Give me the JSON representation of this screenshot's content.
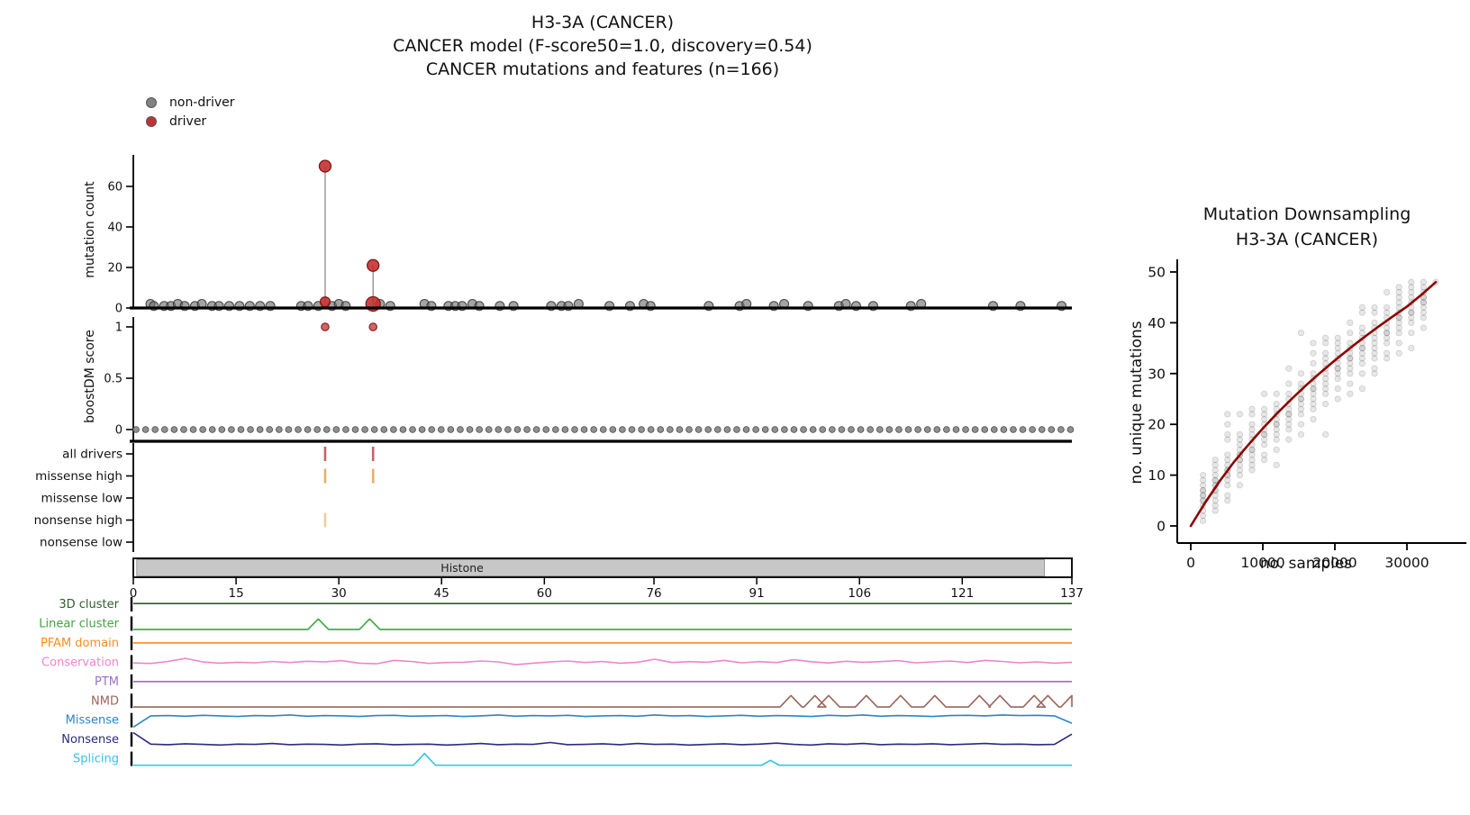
{
  "figure": {
    "title_lines": [
      "H3-3A (CANCER)",
      "CANCER model (F-score50=1.0, discovery=0.54)",
      "CANCER mutations and features (n=166)"
    ],
    "legend": [
      {
        "label": "non-driver",
        "color": "#828282"
      },
      {
        "label": "driver",
        "color": "#c23232"
      }
    ]
  },
  "chart_data": [
    {
      "id": "mutation-count",
      "type": "lollipop",
      "ylabel": "mutation count",
      "yticks": [
        0,
        20,
        40,
        60
      ],
      "ylim": [
        0,
        75
      ],
      "xlim": [
        0,
        137
      ],
      "non_driver_color": "#6e6e6e",
      "driver_color": "#c22424",
      "non_driver_points": [
        [
          2.5,
          2
        ],
        [
          3,
          1
        ],
        [
          4.5,
          1
        ],
        [
          5.5,
          1
        ],
        [
          6.5,
          2
        ],
        [
          7.5,
          1
        ],
        [
          9,
          1
        ],
        [
          10,
          2
        ],
        [
          11.5,
          1
        ],
        [
          12.5,
          1
        ],
        [
          14,
          1
        ],
        [
          15.5,
          1
        ],
        [
          17,
          1
        ],
        [
          18.5,
          1
        ],
        [
          20,
          1
        ],
        [
          24.5,
          1
        ],
        [
          25.5,
          1
        ],
        [
          27,
          1
        ],
        [
          29,
          1
        ],
        [
          30,
          2
        ],
        [
          31,
          1
        ],
        [
          36,
          2
        ],
        [
          37.5,
          1
        ],
        [
          42.5,
          2
        ],
        [
          43.5,
          1
        ],
        [
          46,
          1
        ],
        [
          47,
          1
        ],
        [
          48,
          1
        ],
        [
          49.5,
          2
        ],
        [
          50.5,
          1
        ],
        [
          53.5,
          1
        ],
        [
          55.5,
          1
        ],
        [
          61,
          1
        ],
        [
          62.5,
          1
        ],
        [
          63.5,
          1
        ],
        [
          65,
          2
        ],
        [
          69.5,
          1
        ],
        [
          72.5,
          1
        ],
        [
          74.5,
          2
        ],
        [
          75.5,
          1
        ],
        [
          84,
          1
        ],
        [
          88.5,
          1
        ],
        [
          89.5,
          2
        ],
        [
          93.5,
          1
        ],
        [
          95,
          2
        ],
        [
          98.5,
          1
        ],
        [
          103,
          1
        ],
        [
          104,
          2
        ],
        [
          105.5,
          1
        ],
        [
          108,
          1
        ],
        [
          113.5,
          1
        ],
        [
          115,
          2
        ],
        [
          125.5,
          1
        ],
        [
          129.5,
          1
        ],
        [
          135.5,
          1
        ]
      ],
      "driver_points": [
        [
          28,
          70
        ],
        [
          35,
          21
        ]
      ],
      "driver_base_points": [
        [
          28,
          3
        ],
        [
          35,
          2
        ]
      ]
    },
    {
      "id": "boostdm-score",
      "type": "scatter",
      "ylabel": "boostDM score",
      "yticks": [
        0,
        0.5,
        1
      ],
      "ylim": [
        0,
        1.1
      ],
      "xlim": [
        0,
        137
      ],
      "zero_row": {
        "n": 99,
        "start": 0.4,
        "end": 136.8,
        "y": 0,
        "color": "#848484"
      },
      "driver_scores": [
        [
          28,
          1
        ],
        [
          35,
          1
        ]
      ],
      "driver_color": "#c23232"
    },
    {
      "id": "driver-tracks",
      "type": "tick-tracks",
      "xlim": [
        0,
        137
      ],
      "rows": [
        {
          "label": "all drivers",
          "color": "#c4616d",
          "marks": [
            28,
            35
          ]
        },
        {
          "label": "missense high",
          "color": "#e9ae6a",
          "marks": [
            28,
            35
          ]
        },
        {
          "label": "missense low",
          "color": "#e9ae6a",
          "marks": []
        },
        {
          "label": "nonsense high",
          "color": "#edcca0",
          "marks": [
            28
          ]
        },
        {
          "label": "nonsense low",
          "color": "#edcca0",
          "marks": []
        }
      ]
    },
    {
      "id": "protein-domain-axis",
      "type": "domain-bar",
      "xlim": [
        0,
        137
      ],
      "xticks": [
        0,
        15,
        30,
        45,
        60,
        76,
        91,
        106,
        121,
        137
      ],
      "domains": [
        {
          "label": "Histone",
          "start": 0.5,
          "end": 133,
          "fill": "#c7c7c7",
          "label_x": 48
        }
      ]
    },
    {
      "id": "feature-tracks",
      "type": "line-tracks",
      "xlim": [
        0,
        137
      ],
      "rows": [
        {
          "label": "3D cluster",
          "color": "#2e5b2e",
          "kind": "flat",
          "level": 0.55
        },
        {
          "label": "Linear cluster",
          "color": "#3fa33f",
          "kind": "peaks",
          "base": 0.12,
          "peaks": [
            {
              "x": 27,
              "h": 0.8,
              "w": 1.5
            },
            {
              "x": 34.5,
              "h": 0.8,
              "w": 1.5
            }
          ]
        },
        {
          "label": "PFAM domain",
          "color": "#ff8c1e",
          "kind": "flat",
          "level": 0.5
        },
        {
          "label": "Conservation",
          "color": "#ee84cd",
          "kind": "values",
          "values": [
            0.45,
            0.42,
            0.55,
            0.75,
            0.52,
            0.44,
            0.5,
            0.46,
            0.55,
            0.48,
            0.56,
            0.52,
            0.6,
            0.44,
            0.4,
            0.62,
            0.55,
            0.42,
            0.48,
            0.5,
            0.58,
            0.52,
            0.34,
            0.44,
            0.52,
            0.58,
            0.48,
            0.55,
            0.44,
            0.5,
            0.7,
            0.48,
            0.54,
            0.5,
            0.62,
            0.46,
            0.54,
            0.48,
            0.66,
            0.53,
            0.45,
            0.56,
            0.5,
            0.54,
            0.6,
            0.46,
            0.52,
            0.58,
            0.48,
            0.62,
            0.55,
            0.46,
            0.52,
            0.44,
            0.5
          ]
        },
        {
          "label": "PTM",
          "color": "#9c70c6",
          "kind": "flat",
          "level": 0.5
        },
        {
          "label": "NMD",
          "color": "#99655c",
          "kind": "peaks",
          "base": 0.1,
          "peaks": [
            {
              "x": 96
            },
            {
              "x": 99.5
            },
            {
              "x": 101.5
            },
            {
              "x": 107
            },
            {
              "x": 112
            },
            {
              "x": 117
            },
            {
              "x": 123.5
            },
            {
              "x": 126.5
            },
            {
              "x": 131.5
            },
            {
              "x": 133.5
            },
            {
              "x": 137
            }
          ]
        },
        {
          "label": "Missense",
          "color": "#2b86c6",
          "kind": "values",
          "values": [
            0.05,
            0.78,
            0.8,
            0.76,
            0.82,
            0.78,
            0.74,
            0.8,
            0.78,
            0.84,
            0.76,
            0.8,
            0.78,
            0.74,
            0.8,
            0.82,
            0.76,
            0.78,
            0.8,
            0.74,
            0.78,
            0.84,
            0.76,
            0.8,
            0.78,
            0.82,
            0.74,
            0.78,
            0.8,
            0.76,
            0.84,
            0.78,
            0.8,
            0.74,
            0.78,
            0.82,
            0.76,
            0.8,
            0.78,
            0.74,
            0.82,
            0.78,
            0.84,
            0.76,
            0.8,
            0.78,
            0.74,
            0.8,
            0.82,
            0.78,
            0.84,
            0.8,
            0.82,
            0.78,
            0.3
          ]
        },
        {
          "label": "Nonsense",
          "color": "#2a2a80",
          "kind": "values",
          "values": [
            0.95,
            0.2,
            0.16,
            0.22,
            0.18,
            0.14,
            0.2,
            0.18,
            0.24,
            0.16,
            0.2,
            0.18,
            0.14,
            0.2,
            0.22,
            0.16,
            0.18,
            0.2,
            0.14,
            0.18,
            0.24,
            0.16,
            0.2,
            0.18,
            0.3,
            0.16,
            0.18,
            0.22,
            0.16,
            0.24,
            0.18,
            0.2,
            0.14,
            0.18,
            0.22,
            0.16,
            0.2,
            0.26,
            0.18,
            0.14,
            0.22,
            0.18,
            0.24,
            0.16,
            0.2,
            0.18,
            0.22,
            0.16,
            0.2,
            0.24,
            0.18,
            0.2,
            0.16,
            0.18,
            0.85
          ]
        },
        {
          "label": "Splicing",
          "color": "#2fc3e6",
          "kind": "peaks",
          "base": 0.08,
          "peaks": [
            {
              "x": 42.5,
              "h": 0.85,
              "w": 1.6
            },
            {
              "x": 93,
              "h": 0.4,
              "w": 1.3
            }
          ]
        }
      ]
    },
    {
      "id": "mutation-downsampling",
      "type": "scatter",
      "title_lines": [
        "Mutation Downsampling",
        "H3-3A (CANCER)"
      ],
      "xlabel": "no. samples",
      "ylabel": "no. unique mutations",
      "xticks": [
        0,
        10000,
        20000,
        30000
      ],
      "yticks": [
        0,
        10,
        20,
        30,
        40,
        50
      ],
      "xlim": [
        0,
        35000
      ],
      "ylim": [
        0,
        52
      ],
      "trend_color": "#8b0000",
      "dot_color": "#787878",
      "trend": [
        [
          0,
          0
        ],
        [
          2000,
          4.6
        ],
        [
          4000,
          8.8
        ],
        [
          6000,
          12.6
        ],
        [
          8000,
          16
        ],
        [
          10000,
          19.2
        ],
        [
          12000,
          22.2
        ],
        [
          14000,
          25
        ],
        [
          16000,
          27.7
        ],
        [
          18000,
          30.2
        ],
        [
          20000,
          32.6
        ],
        [
          22000,
          34.9
        ],
        [
          24000,
          37.1
        ],
        [
          26000,
          39.2
        ],
        [
          28000,
          41.2
        ],
        [
          30000,
          43.2
        ],
        [
          32000,
          45.5
        ],
        [
          34000,
          48
        ]
      ],
      "columns": [
        {
          "x": 1700,
          "ys": [
            1,
            2,
            3,
            4,
            5,
            5,
            6,
            6,
            7,
            7,
            8,
            9,
            10
          ]
        },
        {
          "x": 3400,
          "ys": [
            3,
            4,
            5,
            6,
            7,
            7,
            8,
            8,
            9,
            9,
            10,
            11,
            12,
            13
          ]
        },
        {
          "x": 5100,
          "ys": [
            5,
            6,
            8,
            9,
            10,
            10,
            11,
            11,
            12,
            13,
            14,
            17,
            18,
            20,
            22
          ]
        },
        {
          "x": 6800,
          "ys": [
            8,
            10,
            11,
            12,
            13,
            13,
            14,
            14,
            15,
            16,
            17,
            18,
            22
          ]
        },
        {
          "x": 8500,
          "ys": [
            11,
            12,
            13,
            14,
            15,
            15,
            16,
            17,
            18,
            19,
            20,
            22,
            23
          ]
        },
        {
          "x": 10200,
          "ys": [
            13,
            14,
            16,
            17,
            18,
            18,
            19,
            20,
            21,
            22,
            23,
            26
          ]
        },
        {
          "x": 11900,
          "ys": [
            12,
            15,
            17,
            18,
            19,
            20,
            20,
            21,
            22,
            23,
            24,
            26
          ]
        },
        {
          "x": 13600,
          "ys": [
            17,
            19,
            20,
            21,
            22,
            22,
            23,
            24,
            25,
            26,
            28,
            31
          ]
        },
        {
          "x": 15300,
          "ys": [
            18,
            20,
            22,
            23,
            24,
            25,
            25,
            26,
            27,
            28,
            30,
            38
          ]
        },
        {
          "x": 17000,
          "ys": [
            21,
            23,
            24,
            25,
            26,
            27,
            27,
            28,
            29,
            30,
            32,
            34,
            36
          ]
        },
        {
          "x": 18700,
          "ys": [
            18,
            24,
            26,
            27,
            28,
            29,
            30,
            31,
            32,
            33,
            34,
            36,
            37
          ]
        },
        {
          "x": 20400,
          "ys": [
            25,
            27,
            29,
            30,
            31,
            31,
            32,
            33,
            34,
            35,
            36,
            37
          ]
        },
        {
          "x": 22100,
          "ys": [
            26,
            28,
            30,
            31,
            32,
            33,
            33,
            34,
            35,
            36,
            38,
            40
          ]
        },
        {
          "x": 23800,
          "ys": [
            27,
            30,
            32,
            33,
            34,
            35,
            35,
            36,
            37,
            38,
            39,
            42,
            43
          ]
        },
        {
          "x": 25500,
          "ys": [
            30,
            31,
            33,
            34,
            35,
            36,
            37,
            38,
            39,
            40,
            42,
            43
          ]
        },
        {
          "x": 27200,
          "ys": [
            33,
            34,
            36,
            37,
            38,
            38,
            39,
            40,
            41,
            42,
            43,
            46
          ]
        },
        {
          "x": 28900,
          "ys": [
            34,
            36,
            38,
            39,
            40,
            41,
            41,
            42,
            43,
            44,
            45,
            46,
            47
          ]
        },
        {
          "x": 30600,
          "ys": [
            35,
            38,
            40,
            41,
            42,
            42,
            43,
            44,
            45,
            46,
            47,
            48
          ]
        },
        {
          "x": 32300,
          "ys": [
            39,
            41,
            42,
            43,
            44,
            44,
            45,
            45,
            46,
            47,
            48
          ]
        },
        {
          "x": 34000,
          "ys": [
            48
          ]
        }
      ]
    }
  ]
}
